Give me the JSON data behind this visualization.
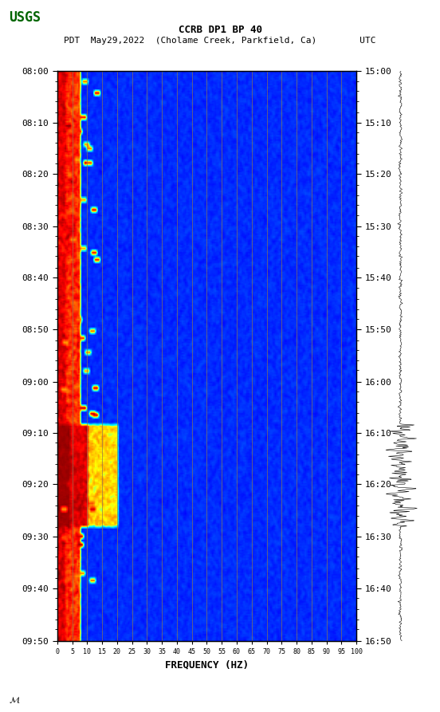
{
  "title_line1": "CCRB DP1 BP 40",
  "title_line2": "PDT  May29,2022  (Cholame Creek, Parkfield, Ca)        UTC",
  "xlabel": "FREQUENCY (HZ)",
  "xticks": [
    0,
    5,
    10,
    15,
    20,
    25,
    30,
    35,
    40,
    45,
    50,
    55,
    60,
    65,
    70,
    75,
    80,
    85,
    90,
    95,
    100
  ],
  "freq_min": 0,
  "freq_max": 100,
  "time_start_pdt": "08:00",
  "time_end_pdt": "09:50",
  "time_start_utc": "15:00",
  "time_end_utc": "16:50",
  "ytick_labels_left": [
    "08:00",
    "08:10",
    "08:20",
    "08:30",
    "08:40",
    "08:50",
    "09:00",
    "09:10",
    "09:20",
    "09:30",
    "09:40",
    "09:50"
  ],
  "ytick_labels_right": [
    "15:00",
    "15:10",
    "15:20",
    "15:30",
    "15:40",
    "15:50",
    "16:00",
    "16:10",
    "16:20",
    "16:30",
    "16:40",
    "16:50"
  ],
  "background_color": "#ffffff",
  "spectrogram_bg": "#0000cc",
  "vertical_line_color": "#8B7355",
  "fig_width": 5.52,
  "fig_height": 8.93,
  "usgs_logo_color": "#006400"
}
